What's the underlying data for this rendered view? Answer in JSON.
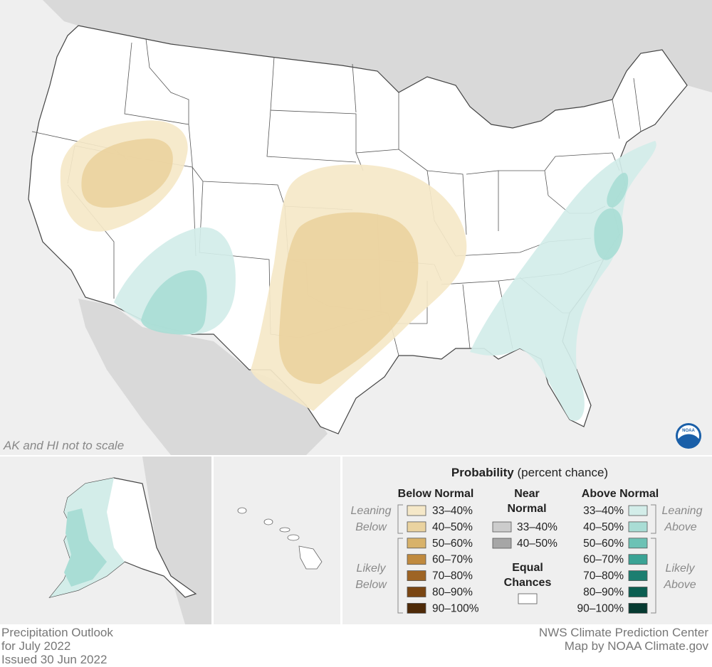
{
  "map": {
    "title_line1": "Precipitation Outlook",
    "title_line2": "for July 2022",
    "title_line3": "Issued 30 Jun 2022",
    "credit_line1": "NWS Climate Prediction Center",
    "credit_line2": "Map by NOAA Climate.gov",
    "scale_note": "AK and HI not to scale",
    "logo_text": "NOAA"
  },
  "legend": {
    "heading_bold": "Probability",
    "heading_rest": "(percent chance)",
    "below": {
      "header": "Below Normal",
      "leaning_1": "Leaning",
      "leaning_2": "Below",
      "likely_1": "Likely",
      "likely_2": "Below",
      "items": [
        {
          "label": "33–40%",
          "color": "#f5e8c8"
        },
        {
          "label": "40–50%",
          "color": "#ead3a0"
        },
        {
          "label": "50–60%",
          "color": "#d8b26a"
        },
        {
          "label": "60–70%",
          "color": "#c08a3e"
        },
        {
          "label": "70–80%",
          "color": "#9e6424"
        },
        {
          "label": "80–90%",
          "color": "#7a4613"
        },
        {
          "label": "90–100%",
          "color": "#4e2a08"
        }
      ]
    },
    "near": {
      "header_1": "Near",
      "header_2": "Normal",
      "items": [
        {
          "label": "33–40%",
          "color": "#cccccc"
        },
        {
          "label": "40–50%",
          "color": "#a6a6a6"
        }
      ],
      "equal_1": "Equal",
      "equal_2": "Chances",
      "equal_color": "#ffffff"
    },
    "above": {
      "header": "Above Normal",
      "leaning_1": "Leaning",
      "leaning_2": "Above",
      "likely_1": "Likely",
      "likely_2": "Above",
      "items": [
        {
          "label": "33–40%",
          "color": "#d3ede9"
        },
        {
          "label": "40–50%",
          "color": "#a9ddd5"
        },
        {
          "label": "50–60%",
          "color": "#6cc2b5"
        },
        {
          "label": "60–70%",
          "color": "#3aa395"
        },
        {
          "label": "70–80%",
          "color": "#1c7e70"
        },
        {
          "label": "80–90%",
          "color": "#0b5e51"
        },
        {
          "label": "90–100%",
          "color": "#063a31"
        }
      ]
    }
  }
}
